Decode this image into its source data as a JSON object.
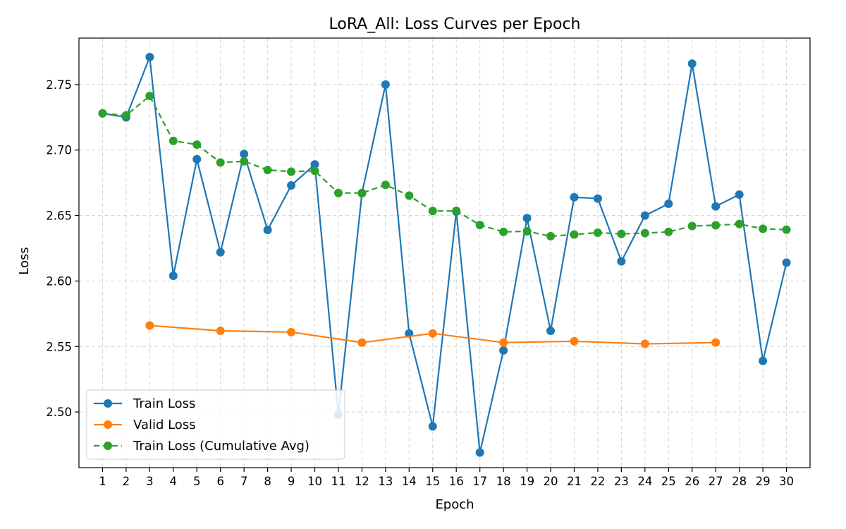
{
  "chart_data": {
    "type": "line",
    "title": "LoRA_All: Loss Curves per Epoch",
    "xlabel": "Epoch",
    "ylabel": "Loss",
    "xlim": [
      0,
      31
    ],
    "ylim": [
      2.4575,
      2.7855
    ],
    "x_ticks": [
      1,
      2,
      3,
      4,
      5,
      6,
      7,
      8,
      9,
      10,
      11,
      12,
      13,
      14,
      15,
      16,
      17,
      18,
      19,
      20,
      21,
      22,
      23,
      24,
      25,
      26,
      27,
      28,
      29,
      30
    ],
    "y_ticks": [
      2.5,
      2.55,
      2.6,
      2.65,
      2.7,
      2.75
    ],
    "y_tick_labels": [
      "2.50",
      "2.55",
      "2.60",
      "2.65",
      "2.70",
      "2.75"
    ],
    "grid": true,
    "legend_position": "lower-left",
    "series": [
      {
        "name": "Train Loss",
        "color": "#1f77b4",
        "dashed": false,
        "x": [
          1,
          2,
          3,
          4,
          5,
          6,
          7,
          8,
          9,
          10,
          11,
          12,
          13,
          14,
          15,
          16,
          17,
          18,
          19,
          20,
          21,
          22,
          23,
          24,
          25,
          26,
          27,
          28,
          29,
          30
        ],
        "y": [
          2.728,
          2.725,
          2.771,
          2.604,
          2.693,
          2.622,
          2.697,
          2.639,
          2.673,
          2.689,
          2.498,
          2.667,
          2.75,
          2.56,
          2.489,
          2.653,
          2.469,
          2.547,
          2.648,
          2.562,
          2.664,
          2.663,
          2.615,
          2.65,
          2.659,
          2.766,
          2.657,
          2.666,
          2.539,
          2.614
        ]
      },
      {
        "name": "Valid Loss",
        "color": "#ff7f0e",
        "dashed": false,
        "x": [
          3,
          6,
          9,
          12,
          15,
          18,
          21,
          24,
          27
        ],
        "y": [
          2.566,
          2.562,
          2.561,
          2.553,
          2.56,
          2.553,
          2.554,
          2.552,
          2.553
        ]
      },
      {
        "name": "Train Loss (Cumulative Avg)",
        "color": "#2ca02c",
        "dashed": true,
        "x": [
          1,
          2,
          3,
          4,
          5,
          6,
          7,
          8,
          9,
          10,
          11,
          12,
          13,
          14,
          15,
          16,
          17,
          18,
          19,
          20,
          21,
          22,
          23,
          24,
          25,
          26,
          27,
          28,
          29,
          30
        ],
        "y": [
          2.728,
          2.7265,
          2.7413,
          2.707,
          2.7042,
          2.6905,
          2.6914,
          2.6848,
          2.6835,
          2.6841,
          2.6672,
          2.6672,
          2.6734,
          2.6652,
          2.6535,
          2.6536,
          2.6428,
          2.6375,
          2.638,
          2.6342,
          2.6355,
          2.6369,
          2.636,
          2.6366,
          2.6375,
          2.642,
          2.6426,
          2.6435,
          2.6399,
          2.6392
        ]
      }
    ]
  }
}
